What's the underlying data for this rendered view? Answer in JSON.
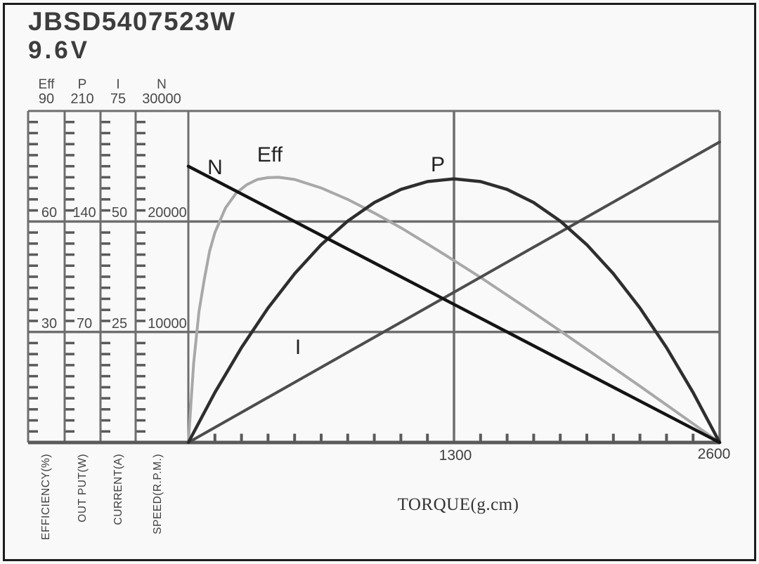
{
  "title": {
    "model": "JBSD5407523W",
    "voltage": "9.6V"
  },
  "colors": {
    "background": "#f9f9f9",
    "border": "#1c1c1c",
    "grid": "#6e6e6e",
    "axis": "#5a5a5a",
    "text": "#4a4a4a"
  },
  "chart_data": {
    "type": "line",
    "title": "JBSD5407523W 9.6V motor performance curves",
    "grid": true,
    "legend_position": "inline-curve-labels",
    "x_axis": {
      "label": "TORQUE(g.cm)",
      "min": 0,
      "max": 2600,
      "ticks": [
        "1300",
        "2600"
      ],
      "minor_divisions": 20
    },
    "y_axes": [
      {
        "name": "Eff",
        "label": "EFFICIENCY(%)",
        "min": 0,
        "max": 90,
        "tick_labels": [
          "90",
          "60",
          "30"
        ],
        "minor_divisions": 30
      },
      {
        "name": "P",
        "label": "OUT PUT(W)",
        "min": 0,
        "max": 210,
        "tick_labels": [
          "210",
          "140",
          "70"
        ],
        "minor_divisions": 30
      },
      {
        "name": "I",
        "label": "CURRENT(A)",
        "min": 0,
        "max": 75,
        "tick_labels": [
          "75",
          "50",
          "25"
        ],
        "minor_divisions": 30
      },
      {
        "name": "N",
        "label": "SPEED(R.P.M.)",
        "min": 0,
        "max": 30000,
        "tick_labels": [
          "30000",
          "20000",
          "10000"
        ],
        "minor_divisions": 30
      }
    ],
    "series": [
      {
        "name": "N",
        "axis": "N",
        "color": "#141414",
        "width": 4.5,
        "points": [
          [
            0,
            25000
          ],
          [
            2600,
            0
          ]
        ]
      },
      {
        "name": "Eff",
        "axis": "Eff",
        "color": "#a8a8a8",
        "width": 4,
        "points": [
          [
            0,
            0
          ],
          [
            26,
            21.6
          ],
          [
            52,
            35.5
          ],
          [
            78,
            44.3
          ],
          [
            104,
            51.9
          ],
          [
            130,
            57.0
          ],
          [
            182,
            63.7
          ],
          [
            234,
            67.7
          ],
          [
            286,
            70.0
          ],
          [
            338,
            71.4
          ],
          [
            390,
            71.9
          ],
          [
            442,
            72.0
          ],
          [
            520,
            71.4
          ],
          [
            650,
            69.1
          ],
          [
            780,
            66.0
          ],
          [
            910,
            62.3
          ],
          [
            1040,
            58.3
          ],
          [
            1170,
            53.9
          ],
          [
            1300,
            49.4
          ],
          [
            1430,
            44.8
          ],
          [
            1560,
            40.0
          ],
          [
            1690,
            35.2
          ],
          [
            1820,
            30.3
          ],
          [
            1950,
            25.3
          ],
          [
            2080,
            20.3
          ],
          [
            2210,
            15.3
          ],
          [
            2340,
            10.2
          ],
          [
            2470,
            5.1
          ],
          [
            2600,
            0
          ]
        ]
      },
      {
        "name": "P",
        "axis": "P",
        "color": "#2e2e2e",
        "width": 4.5,
        "points": [
          [
            0,
            0
          ],
          [
            130,
            31.7
          ],
          [
            260,
            60.1
          ],
          [
            390,
            85.2
          ],
          [
            520,
            106.9
          ],
          [
            650,
            125.3
          ],
          [
            780,
            140.3
          ],
          [
            910,
            152.0
          ],
          [
            1040,
            160.3
          ],
          [
            1170,
            165.3
          ],
          [
            1300,
            167
          ],
          [
            1430,
            165.3
          ],
          [
            1560,
            160.3
          ],
          [
            1690,
            152.0
          ],
          [
            1820,
            140.3
          ],
          [
            1950,
            125.3
          ],
          [
            2080,
            106.9
          ],
          [
            2210,
            85.2
          ],
          [
            2340,
            60.1
          ],
          [
            2470,
            31.7
          ],
          [
            2600,
            0
          ]
        ]
      },
      {
        "name": "I",
        "axis": "I",
        "color": "#4d4d4d",
        "width": 4,
        "points": [
          [
            0,
            0
          ],
          [
            2600,
            68
          ]
        ]
      }
    ]
  }
}
